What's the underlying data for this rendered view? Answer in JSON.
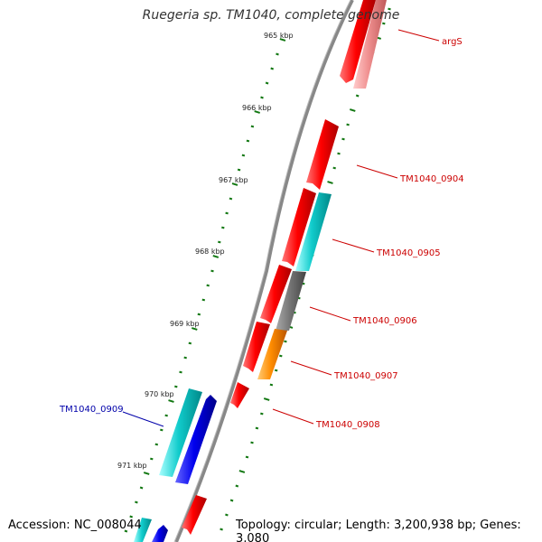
{
  "title": "Ruegeria sp. TM1040, complete genome",
  "footer": {
    "accession": "Accession: NC_008044",
    "summary": "Topology: circular; Length: 3,200,938 bp; Genes: 3,080"
  },
  "ticks": [
    {
      "label": "965 kbp"
    },
    {
      "label": "966 kbp"
    },
    {
      "label": "967 kbp"
    },
    {
      "label": "968 kbp"
    },
    {
      "label": "969 kbp"
    },
    {
      "label": "970 kbp"
    },
    {
      "label": "971 kbp"
    }
  ],
  "genes": [
    {
      "label": "argS",
      "color": "#cc0000"
    },
    {
      "label": "TM1040_0904",
      "color": "#cc0000"
    },
    {
      "label": "TM1040_0905",
      "color": "#cc0000"
    },
    {
      "label": "TM1040_0906",
      "color": "#cc0000"
    },
    {
      "label": "TM1040_0907",
      "color": "#cc0000"
    },
    {
      "label": "TM1040_0908",
      "color": "#cc0000"
    },
    {
      "label": "TM1040_0909",
      "color": "#0000aa"
    }
  ],
  "feature_colors": {
    "red": "#ee0000",
    "pink": "#ee8888",
    "cyan": "#11cccc",
    "blue": "#0000ee",
    "gray": "#777777",
    "orange": "#ff8c00",
    "tick_green": "#117711",
    "backbone": "#888888"
  }
}
